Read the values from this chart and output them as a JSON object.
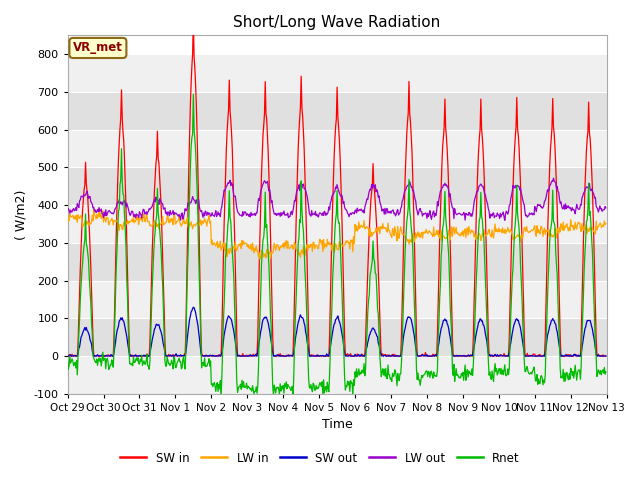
{
  "title": "Short/Long Wave Radiation",
  "xlabel": "Time",
  "ylabel": "( W/m2)",
  "ylim": [
    -100,
    850
  ],
  "yticks": [
    -100,
    0,
    100,
    200,
    300,
    400,
    500,
    600,
    700,
    800
  ],
  "colors": {
    "SW_in": "#ff0000",
    "LW_in": "#ffa500",
    "SW_out": "#0000cc",
    "LW_out": "#9900cc",
    "Rnet": "#00bb00"
  },
  "legend_labels": [
    "SW in",
    "LW in",
    "SW out",
    "LW out",
    "Rnet"
  ],
  "annotation_box": "VR_met",
  "annotation_box_color": "#ffffcc",
  "annotation_box_edge": "#8B6914",
  "fig_bg_color": "#ffffff",
  "plot_bg_color": "#ffffff",
  "band_color_light": "#f0f0f0",
  "band_color_dark": "#e0e0e0",
  "n_days": 15,
  "tick_labels": [
    "Oct 29",
    "Oct 30",
    "Oct 31",
    "Nov 1",
    "Nov 2",
    "Nov 3",
    "Nov 4",
    "Nov 5",
    "Nov 6",
    "Nov 7",
    "Nov 8",
    "Nov 9",
    "Nov 10",
    "Nov 11",
    "Nov 12",
    "Nov 13"
  ]
}
